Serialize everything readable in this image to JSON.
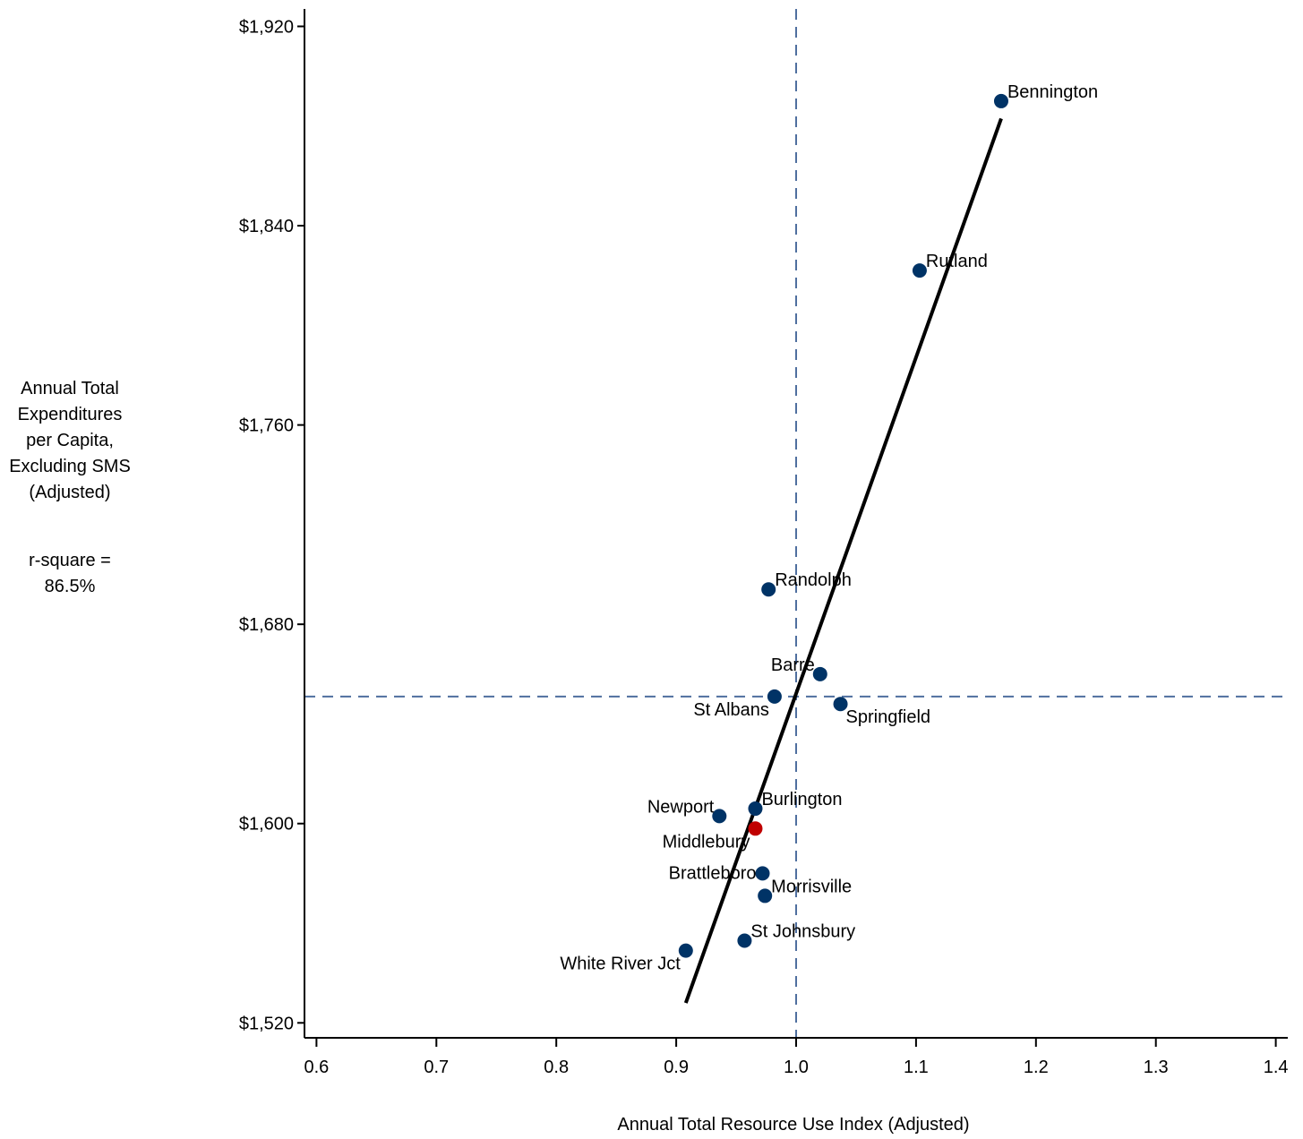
{
  "chart_data": {
    "type": "scatter",
    "ylabel_lines": [
      "Annual Total",
      "Expenditures",
      "per Capita,",
      "Excluding SMS",
      "(Adjusted)"
    ],
    "rsquare_lines": [
      "r-square =",
      "86.5%"
    ],
    "xlabel": "Annual Total Resource Use Index (Adjusted)",
    "xlim": [
      0.59,
      1.41
    ],
    "ylim": [
      1514,
      1927
    ],
    "x_ticks": [
      0.6,
      0.7,
      0.8,
      0.9,
      1.0,
      1.1,
      1.2,
      1.3,
      1.4
    ],
    "x_tick_labels": [
      "0.6",
      "0.7",
      "0.8",
      "0.9",
      "1.0",
      "1.1",
      "1.2",
      "1.3",
      "1.4"
    ],
    "y_ticks": [
      1520,
      1600,
      1680,
      1760,
      1840,
      1920
    ],
    "y_tick_labels": [
      "$1,520",
      "$1,600",
      "$1,680",
      "$1,760",
      "$1,840",
      "$1,920"
    ],
    "reference_lines": {
      "x": 1.0,
      "y": 1651
    },
    "fit_line": {
      "x": [
        0.908,
        1.171
      ],
      "y": [
        1528,
        1883
      ]
    },
    "colors": {
      "point": "#003366",
      "highlight": "#c00000",
      "reference": "#4f6f9f",
      "fit": "#000000"
    },
    "points": [
      {
        "name": "Bennington",
        "x": 1.171,
        "y": 1890,
        "label_pos": "right"
      },
      {
        "name": "Rutland",
        "x": 1.103,
        "y": 1822,
        "label_pos": "right"
      },
      {
        "name": "Randolph",
        "x": 0.977,
        "y": 1694,
        "label_pos": "right"
      },
      {
        "name": "Barre",
        "x": 1.02,
        "y": 1660,
        "label_pos": "left-above"
      },
      {
        "name": "St Albans",
        "x": 0.982,
        "y": 1651,
        "label_pos": "left-below"
      },
      {
        "name": "Springfield",
        "x": 1.037,
        "y": 1648,
        "label_pos": "right-below"
      },
      {
        "name": "Burlington",
        "x": 0.966,
        "y": 1606,
        "label_pos": "right"
      },
      {
        "name": "Newport",
        "x": 0.936,
        "y": 1603,
        "label_pos": "left-above"
      },
      {
        "name": "Middlebury",
        "x": 0.966,
        "y": 1598,
        "label_pos": "left-below",
        "highlight": true
      },
      {
        "name": "Brattleboro",
        "x": 0.972,
        "y": 1580,
        "label_pos": "left"
      },
      {
        "name": "Morrisville",
        "x": 0.974,
        "y": 1571,
        "label_pos": "right"
      },
      {
        "name": "St Johnsbury",
        "x": 0.957,
        "y": 1553,
        "label_pos": "right"
      },
      {
        "name": "White River Jct",
        "x": 0.908,
        "y": 1549,
        "label_pos": "left-below"
      }
    ]
  }
}
